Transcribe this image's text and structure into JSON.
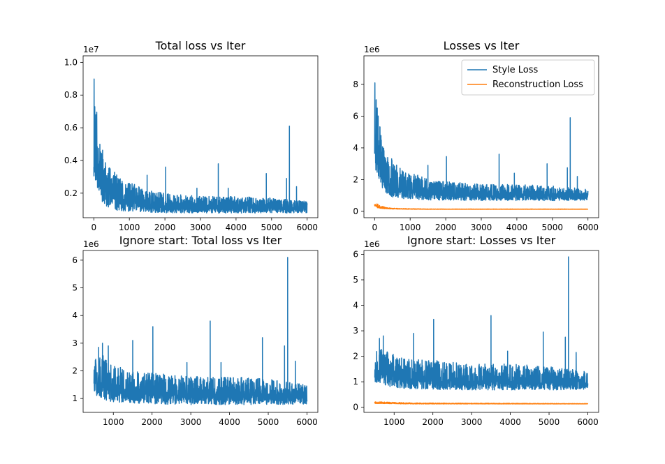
{
  "figure": {
    "background": "#ffffff"
  },
  "chart_data": [
    {
      "id": "tl",
      "type": "line",
      "title": "Total loss vs Iter",
      "xlabel": "",
      "ylabel": "",
      "xlim": [
        -300,
        6300
      ],
      "ylim": [
        0.5,
        10.4
      ],
      "x_ticks": [
        0,
        1000,
        2000,
        3000,
        4000,
        5000,
        6000
      ],
      "y_ticks": [
        0.2,
        0.4,
        0.6,
        0.8,
        1.0
      ],
      "y_tick_labels": [
        "0.2",
        "0.4",
        "0.6",
        "0.8",
        "1.0"
      ],
      "y_tick_values": [
        2,
        4,
        6,
        8,
        10
      ],
      "y_offset_text": "1e7",
      "grid": false,
      "legend": null,
      "series": [
        {
          "name": "",
          "color": "#1f77b4",
          "noise_seed": 11,
          "x_range": [
            0,
            6000
          ],
          "envelope": [
            [
              0,
              2.9,
              10.1
            ],
            [
              40,
              2.6,
              8.5
            ],
            [
              100,
              2.3,
              6.7
            ],
            [
              200,
              1.6,
              5.6
            ],
            [
              300,
              1.3,
              4.0
            ],
            [
              500,
              1.0,
              3.5
            ],
            [
              800,
              0.9,
              2.8
            ],
            [
              1200,
              0.85,
              2.5
            ],
            [
              1500,
              0.82,
              2.2
            ],
            [
              2000,
              0.8,
              2.0
            ],
            [
              3000,
              0.78,
              1.8
            ],
            [
              4000,
              0.78,
              1.8
            ],
            [
              5000,
              0.78,
              1.7
            ],
            [
              6000,
              0.8,
              1.5
            ]
          ],
          "spikes": [
            [
              1500,
              3.1
            ],
            [
              2020,
              3.6
            ],
            [
              2900,
              2.3
            ],
            [
              3500,
              3.8
            ],
            [
              3780,
              2.3
            ],
            [
              4850,
              3.2
            ],
            [
              5420,
              2.9
            ],
            [
              5500,
              6.1
            ],
            [
              5700,
              2.4
            ]
          ]
        }
      ]
    },
    {
      "id": "tr",
      "type": "line",
      "title": "Losses vs Iter",
      "xlabel": "",
      "ylabel": "",
      "xlim": [
        -300,
        6300
      ],
      "ylim": [
        -0.4,
        9.8
      ],
      "x_ticks": [
        0,
        1000,
        2000,
        3000,
        4000,
        5000,
        6000
      ],
      "y_ticks": [
        0,
        2,
        4,
        6,
        8
      ],
      "y_tick_labels": [
        "0",
        "2",
        "4",
        "6",
        "8"
      ],
      "y_tick_values": [
        0,
        2,
        4,
        6,
        8
      ],
      "y_offset_text": "1e6",
      "grid": false,
      "legend": "top-right",
      "series": [
        {
          "name": "Style Loss",
          "color": "#1f77b4",
          "noise_seed": 23,
          "x_range": [
            0,
            6000
          ],
          "envelope": [
            [
              0,
              2.8,
              9.3
            ],
            [
              40,
              2.5,
              7.5
            ],
            [
              100,
              2.2,
              6.2
            ],
            [
              200,
              1.5,
              4.7
            ],
            [
              300,
              1.2,
              3.6
            ],
            [
              500,
              0.9,
              3.3
            ],
            [
              800,
              0.8,
              2.6
            ],
            [
              1200,
              0.75,
              2.3
            ],
            [
              1500,
              0.72,
              2.0
            ],
            [
              2000,
              0.7,
              1.9
            ],
            [
              3000,
              0.68,
              1.7
            ],
            [
              4000,
              0.68,
              1.7
            ],
            [
              5000,
              0.68,
              1.6
            ],
            [
              6000,
              0.7,
              1.4
            ]
          ],
          "spikes": [
            [
              1500,
              2.9
            ],
            [
              2020,
              3.45
            ],
            [
              3500,
              3.6
            ],
            [
              3930,
              2.4
            ],
            [
              4850,
              3.0
            ],
            [
              5420,
              2.75
            ],
            [
              5500,
              5.9
            ],
            [
              5700,
              2.2
            ]
          ]
        },
        {
          "name": "Reconstruction Loss",
          "color": "#ff7f0e",
          "noise_seed": 37,
          "x_range": [
            0,
            6000
          ],
          "envelope": [
            [
              0,
              0.35,
              0.8
            ],
            [
              50,
              0.25,
              0.55
            ],
            [
              150,
              0.18,
              0.35
            ],
            [
              400,
              0.15,
              0.22
            ],
            [
              700,
              0.14,
              0.18
            ],
            [
              1500,
              0.13,
              0.15
            ],
            [
              6000,
              0.13,
              0.145
            ]
          ],
          "spikes": []
        }
      ]
    },
    {
      "id": "bl",
      "type": "line",
      "title": "Ignore start: Total loss vs Iter",
      "xlabel": "",
      "ylabel": "",
      "xlim": [
        220,
        6280
      ],
      "ylim": [
        0.5,
        6.35
      ],
      "x_ticks": [
        1000,
        2000,
        3000,
        4000,
        5000,
        6000
      ],
      "y_ticks": [
        1,
        2,
        3,
        4,
        5,
        6
      ],
      "y_tick_labels": [
        "1",
        "2",
        "3",
        "4",
        "5",
        "6"
      ],
      "y_tick_values": [
        1,
        2,
        3,
        4,
        5,
        6
      ],
      "y_offset_text": "1e6",
      "grid": false,
      "legend": null,
      "series": [
        {
          "name": "",
          "color": "#1f77b4",
          "noise_seed": 51,
          "x_range": [
            500,
            6000
          ],
          "envelope": [
            [
              500,
              1.1,
              2.5
            ],
            [
              700,
              1.0,
              2.6
            ],
            [
              900,
              0.9,
              2.3
            ],
            [
              1200,
              0.85,
              2.2
            ],
            [
              1500,
              0.82,
              2.0
            ],
            [
              2000,
              0.8,
              1.95
            ],
            [
              3000,
              0.78,
              1.8
            ],
            [
              4000,
              0.78,
              1.8
            ],
            [
              5000,
              0.78,
              1.7
            ],
            [
              6000,
              0.8,
              1.5
            ]
          ],
          "spikes": [
            [
              620,
              2.85
            ],
            [
              720,
              3.0
            ],
            [
              870,
              2.9
            ],
            [
              1500,
              3.1
            ],
            [
              2020,
              3.6
            ],
            [
              2900,
              2.3
            ],
            [
              3500,
              3.8
            ],
            [
              3780,
              2.3
            ],
            [
              4850,
              3.2
            ],
            [
              5420,
              2.9
            ],
            [
              5500,
              6.1
            ],
            [
              5700,
              2.35
            ]
          ]
        }
      ]
    },
    {
      "id": "br",
      "type": "line",
      "title": "Ignore start: Losses vs Iter",
      "xlabel": "",
      "ylabel": "",
      "xlim": [
        220,
        6280
      ],
      "ylim": [
        -0.2,
        6.15
      ],
      "x_ticks": [
        1000,
        2000,
        3000,
        4000,
        5000,
        6000
      ],
      "y_ticks": [
        0,
        1,
        2,
        3,
        4,
        5,
        6
      ],
      "y_tick_labels": [
        "0",
        "1",
        "2",
        "3",
        "4",
        "5",
        "6"
      ],
      "y_tick_values": [
        0,
        1,
        2,
        3,
        4,
        5,
        6
      ],
      "y_offset_text": "1e6",
      "grid": false,
      "legend": null,
      "series": [
        {
          "name": "",
          "color": "#1f77b4",
          "noise_seed": 67,
          "x_range": [
            500,
            6000
          ],
          "envelope": [
            [
              500,
              1.0,
              2.3
            ],
            [
              700,
              0.9,
              2.4
            ],
            [
              900,
              0.8,
              2.1
            ],
            [
              1200,
              0.75,
              2.0
            ],
            [
              1500,
              0.72,
              1.9
            ],
            [
              2000,
              0.7,
              1.85
            ],
            [
              3000,
              0.68,
              1.7
            ],
            [
              4000,
              0.68,
              1.7
            ],
            [
              5000,
              0.68,
              1.6
            ],
            [
              6000,
              0.7,
              1.4
            ]
          ],
          "spikes": [
            [
              620,
              2.7
            ],
            [
              720,
              2.8
            ],
            [
              1500,
              2.9
            ],
            [
              2020,
              3.45
            ],
            [
              3500,
              3.6
            ],
            [
              3930,
              2.2
            ],
            [
              4850,
              2.95
            ],
            [
              5420,
              2.75
            ],
            [
              5500,
              5.9
            ],
            [
              5700,
              2.15
            ]
          ]
        },
        {
          "name": "",
          "color": "#ff7f0e",
          "noise_seed": 79,
          "x_range": [
            500,
            6000
          ],
          "envelope": [
            [
              500,
              0.15,
              0.22
            ],
            [
              1500,
              0.13,
              0.17
            ],
            [
              6000,
              0.13,
              0.145
            ]
          ],
          "spikes": []
        }
      ]
    }
  ]
}
